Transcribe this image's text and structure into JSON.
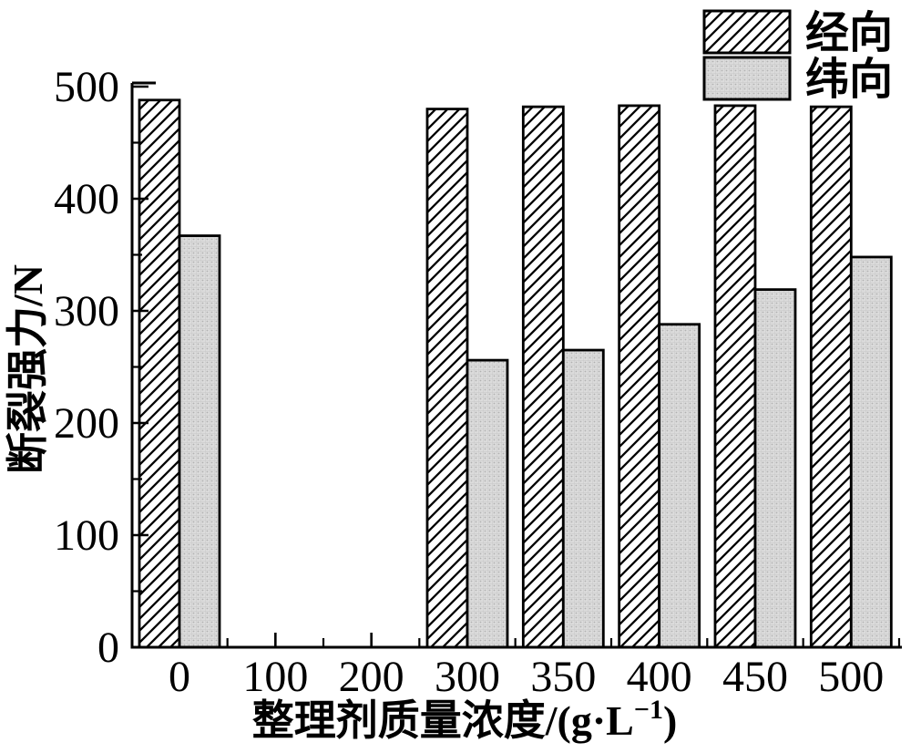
{
  "chart_data": {
    "type": "bar",
    "title": "",
    "xlabel_full": "整理剂质量浓度/(g·L⁻¹)",
    "xlabel_main": "整理剂质量浓度/(g·L",
    "xlabel_sup": "−1",
    "xlabel_end": ")",
    "ylabel": "断裂强力/N",
    "x_tick_labels": [
      "0",
      "100",
      "200",
      "300",
      "350",
      "400",
      "450",
      "500"
    ],
    "categories": [
      "0",
      "300",
      "350",
      "400",
      "450",
      "500"
    ],
    "series": [
      {
        "name": "经向",
        "pattern": "diagonal-hatch",
        "values": [
          488,
          480,
          482,
          483,
          483,
          482
        ]
      },
      {
        "name": "纬向",
        "pattern": "dotted-gray",
        "values": [
          367,
          256,
          265,
          288,
          319,
          348
        ]
      }
    ],
    "ylim": [
      0,
      505
    ],
    "y_major_ticks": [
      0,
      100,
      200,
      300,
      400,
      500
    ],
    "y_minor_step": 50,
    "grid": false,
    "legend_position": "top-right",
    "colors": {
      "stroke": "#000000",
      "warp_fill": "#ffffff",
      "weft_fill": "#d9d9d9",
      "weft_dot": "#9a9a9a",
      "background": "#ffffff"
    }
  }
}
